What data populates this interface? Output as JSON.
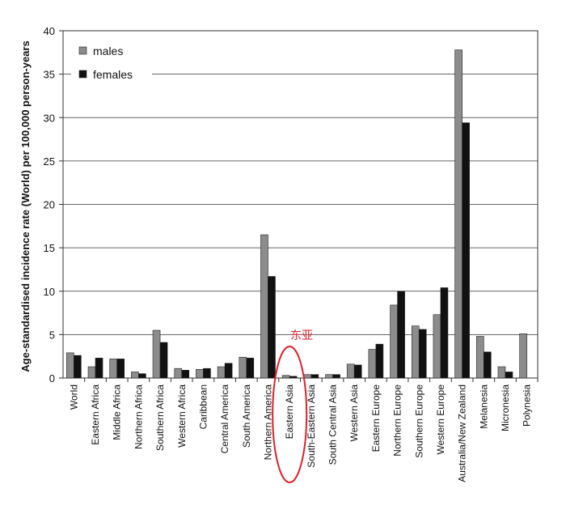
{
  "chart_data": {
    "type": "bar",
    "y_label": "Age-standardised incidence rate (World) per 100,000 person-years",
    "categories": [
      "World",
      "Eastern Africa",
      "Middle Africa",
      "Northern Africa",
      "Southern Africa",
      "Western Africa",
      "Caribbean",
      "Central America",
      "South America",
      "Northern America",
      "Eastern Asia",
      "South-Eastern Asia",
      "South Central Asia",
      "Western Asia",
      "Eastern Europe",
      "Northern Europe",
      "Southern Europe",
      "Western Europe",
      "Australia/New Zealand",
      "Melanesia",
      "Micronesia",
      "Polynesia"
    ],
    "series": [
      {
        "name": "males",
        "color": "#8c8c8c",
        "values": [
          2.9,
          1.3,
          2.2,
          0.7,
          5.5,
          1.1,
          1.0,
          1.3,
          2.4,
          16.5,
          0.3,
          0.4,
          0.4,
          1.6,
          3.3,
          8.4,
          6.0,
          7.3,
          37.8,
          4.8,
          1.3,
          5.1
        ]
      },
      {
        "name": "females",
        "color": "#111111",
        "values": [
          2.6,
          2.3,
          2.2,
          0.5,
          4.1,
          0.9,
          1.1,
          1.7,
          2.3,
          11.7,
          0.2,
          0.4,
          0.4,
          1.5,
          3.9,
          10.0,
          5.6,
          10.4,
          29.4,
          3.0,
          0.7,
          null
        ]
      }
    ],
    "ylim": [
      0,
      40
    ],
    "yticks": [
      0,
      5,
      10,
      15,
      20,
      25,
      30,
      35,
      40
    ],
    "grid": true,
    "legend": "upper left",
    "annotation": {
      "text": "东亚",
      "category": "Eastern Asia",
      "color": "#e0202a"
    }
  }
}
